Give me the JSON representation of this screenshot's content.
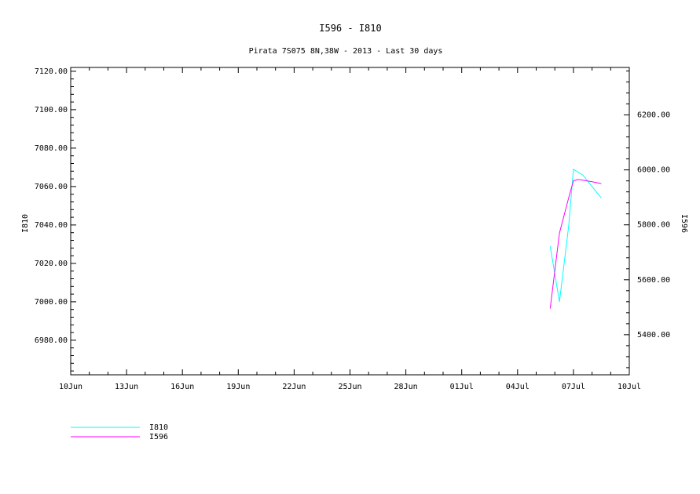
{
  "chart_data": {
    "type": "line",
    "title": "I596 - I810",
    "subtitle": "Pirata 7S075 8N,38W - 2013 - Last 30 days",
    "xlabel": "",
    "ylabel_left": "I810",
    "ylabel_right": "I596",
    "x_ticks": [
      "10Jun",
      "13Jun",
      "16Jun",
      "19Jun",
      "22Jun",
      "25Jun",
      "28Jun",
      "01Jul",
      "04Jul",
      "07Jul",
      "10Jul"
    ],
    "xlim_days": [
      0,
      30
    ],
    "left_axis": {
      "series": "I810",
      "ylim": [
        6962,
        7122
      ],
      "ticks": [
        "6980.00",
        "7000.00",
        "7020.00",
        "7040.00",
        "7060.00",
        "7080.00",
        "7100.00",
        "7120.00"
      ],
      "tick_values": [
        6980,
        7000,
        7020,
        7040,
        7060,
        7080,
        7100,
        7120
      ]
    },
    "right_axis": {
      "series": "I596",
      "ylim": [
        5254,
        6373
      ],
      "ticks": [
        "5400.00",
        "5600.00",
        "5800.00",
        "6000.00",
        "6200.00"
      ],
      "tick_values": [
        5400,
        5600,
        5800,
        6000,
        6200
      ]
    },
    "series": [
      {
        "name": "I810",
        "axis": "left",
        "color": "#00ffff",
        "x": [
          25.75,
          26.25,
          26.75,
          27.0,
          27.5,
          28.0,
          28.5
        ],
        "values": [
          7029,
          7000,
          7040,
          7069,
          7066,
          7060,
          7054
        ]
      },
      {
        "name": "I596",
        "axis": "right",
        "color": "#ff00ff",
        "x": [
          25.75,
          26.25,
          26.75,
          27.0,
          27.25,
          28.0,
          28.5
        ],
        "values": [
          5495,
          5770,
          5900,
          5960,
          5965,
          5957,
          5950
        ]
      }
    ],
    "legend": [
      {
        "label": "I810",
        "color": "#00ffff"
      },
      {
        "label": "I596",
        "color": "#ff00ff"
      }
    ],
    "legend_position": "bottom-left",
    "grid": false
  }
}
